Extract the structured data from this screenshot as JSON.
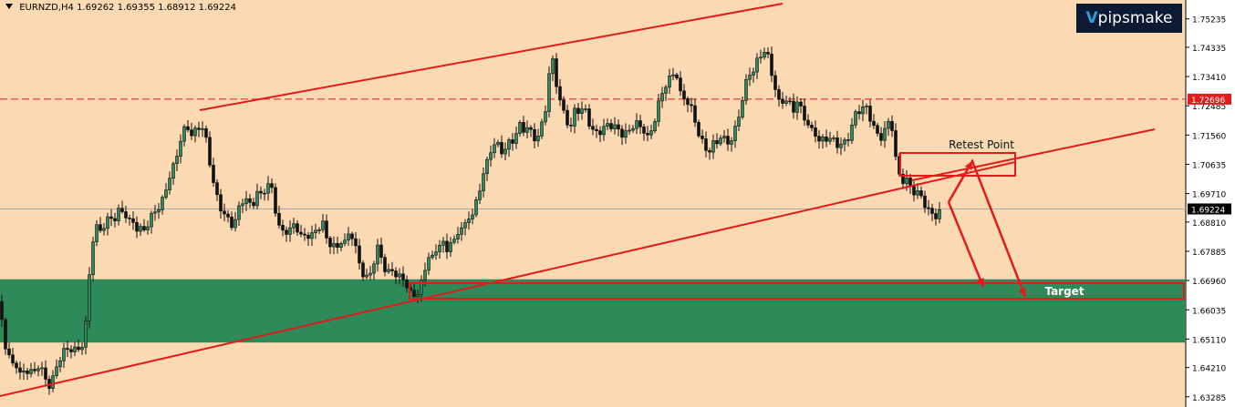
{
  "header": {
    "symbol": "EURNZD,H4",
    "ohlc": "1.69262 1.69355 1.68912 1.69224"
  },
  "logo_text": "pipsmake",
  "colors": {
    "background": "#fbd9b3",
    "axis_bg": "#ffffff",
    "bull": "#2f8a59",
    "bear": "#111111",
    "zone": "#2f8a59",
    "trendline": "#e21b1b",
    "price_line": "#aaaaaa"
  },
  "chart_data": {
    "type": "candlestick",
    "symbol": "EURNZD",
    "timeframe": "H4",
    "ylim": [
      1.6325,
      1.756
    ],
    "y_ticks": [
      "1.75235",
      "1.74335",
      "1.73410",
      "1.72485",
      "1.71560",
      "1.70635",
      "1.69710",
      "1.68810",
      "1.67885",
      "1.66960",
      "1.66035",
      "1.65110",
      "1.64210",
      "1.63285"
    ],
    "current_price": {
      "label": "1.69224",
      "value": 1.69224
    },
    "resistance_level": {
      "label": "1.72696",
      "value": 1.72696,
      "style": "dashed"
    },
    "support_zone": {
      "from": 1.65,
      "to": 1.67
    },
    "annotations": [
      {
        "text": "Retest Point"
      },
      {
        "text": "Target"
      }
    ],
    "close_path": [
      [
        0,
        1.662
      ],
      [
        4,
        1.65
      ],
      [
        8,
        1.645
      ],
      [
        13,
        1.642
      ],
      [
        18,
        1.644
      ],
      [
        23,
        1.641
      ],
      [
        28,
        1.643
      ],
      [
        33,
        1.64
      ],
      [
        38,
        1.639
      ],
      [
        43,
        1.642
      ],
      [
        48,
        1.64
      ],
      [
        53,
        1.638
      ],
      [
        58,
        1.64
      ],
      [
        63,
        1.643
      ],
      [
        68,
        1.645
      ],
      [
        73,
        1.646
      ],
      [
        78,
        1.648
      ],
      [
        83,
        1.649
      ],
      [
        88,
        1.65
      ],
      [
        93,
        1.652
      ],
      [
        97,
        1.667
      ],
      [
        101,
        1.68
      ],
      [
        106,
        1.685
      ],
      [
        111,
        1.686
      ],
      [
        116,
        1.69
      ],
      [
        121,
        1.691
      ],
      [
        126,
        1.689
      ],
      [
        131,
        1.69
      ],
      [
        136,
        1.69
      ],
      [
        141,
        1.688
      ],
      [
        146,
        1.69
      ],
      [
        151,
        1.687
      ],
      [
        156,
        1.686
      ],
      [
        161,
        1.685
      ],
      [
        166,
        1.688
      ],
      [
        171,
        1.692
      ],
      [
        176,
        1.694
      ],
      [
        181,
        1.7
      ],
      [
        186,
        1.703
      ],
      [
        191,
        1.705
      ],
      [
        196,
        1.71
      ],
      [
        201,
        1.716
      ],
      [
        206,
        1.719
      ],
      [
        211,
        1.717
      ],
      [
        216,
        1.719
      ],
      [
        221,
        1.718
      ],
      [
        226,
        1.712
      ],
      [
        231,
        1.704
      ],
      [
        236,
        1.698
      ],
      [
        241,
        1.695
      ],
      [
        246,
        1.692
      ],
      [
        251,
        1.688
      ],
      [
        256,
        1.685
      ],
      [
        261,
        1.69
      ],
      [
        266,
        1.695
      ],
      [
        271,
        1.697
      ],
      [
        276,
        1.694
      ],
      [
        281,
        1.698
      ],
      [
        286,
        1.695
      ],
      [
        291,
        1.697
      ],
      [
        296,
        1.7
      ],
      [
        300,
        1.697
      ],
      [
        304,
        1.69
      ],
      [
        309,
        1.686
      ],
      [
        314,
        1.685
      ],
      [
        319,
        1.684
      ],
      [
        324,
        1.686
      ],
      [
        329,
        1.684
      ],
      [
        334,
        1.685
      ],
      [
        339,
        1.686
      ],
      [
        344,
        1.684
      ],
      [
        349,
        1.685
      ],
      [
        354,
        1.686
      ],
      [
        359,
        1.681
      ],
      [
        364,
        1.683
      ],
      [
        369,
        1.681
      ],
      [
        374,
        1.683
      ],
      [
        379,
        1.68
      ],
      [
        384,
        1.684
      ],
      [
        389,
        1.68
      ],
      [
        394,
        1.676
      ],
      [
        399,
        1.673
      ],
      [
        404,
        1.671
      ],
      [
        409,
        1.674
      ],
      [
        414,
        1.678
      ],
      [
        419,
        1.675
      ],
      [
        424,
        1.672
      ],
      [
        429,
        1.675
      ],
      [
        434,
        1.673
      ],
      [
        439,
        1.67
      ],
      [
        444,
        1.668
      ],
      [
        449,
        1.664
      ],
      [
        454,
        1.665
      ],
      [
        459,
        1.668
      ],
      [
        464,
        1.672
      ],
      [
        469,
        1.678
      ],
      [
        474,
        1.675
      ],
      [
        479,
        1.678
      ],
      [
        484,
        1.682
      ],
      [
        489,
        1.68
      ],
      [
        494,
        1.684
      ],
      [
        499,
        1.682
      ],
      [
        504,
        1.686
      ],
      [
        509,
        1.684
      ],
      [
        514,
        1.689
      ],
      [
        519,
        1.692
      ],
      [
        524,
        1.698
      ],
      [
        529,
        1.704
      ],
      [
        534,
        1.706
      ],
      [
        539,
        1.71
      ],
      [
        544,
        1.712
      ],
      [
        549,
        1.711
      ],
      [
        554,
        1.713
      ],
      [
        559,
        1.715
      ],
      [
        564,
        1.714
      ],
      [
        569,
        1.717
      ],
      [
        574,
        1.716
      ],
      [
        579,
        1.718
      ],
      [
        584,
        1.717
      ],
      [
        589,
        1.716
      ],
      [
        594,
        1.719
      ],
      [
        599,
        1.724
      ],
      [
        603,
        1.736
      ],
      [
        607,
        1.738
      ],
      [
        611,
        1.73
      ],
      [
        616,
        1.726
      ],
      [
        621,
        1.722
      ],
      [
        626,
        1.718
      ],
      [
        631,
        1.723
      ],
      [
        636,
        1.721
      ],
      [
        641,
        1.724
      ],
      [
        646,
        1.721
      ],
      [
        651,
        1.718
      ],
      [
        656,
        1.717
      ],
      [
        661,
        1.716
      ],
      [
        666,
        1.717
      ],
      [
        671,
        1.718
      ],
      [
        676,
        1.719
      ],
      [
        681,
        1.718
      ],
      [
        686,
        1.717
      ],
      [
        691,
        1.716
      ],
      [
        696,
        1.718
      ],
      [
        701,
        1.717
      ],
      [
        706,
        1.718
      ],
      [
        711,
        1.716
      ],
      [
        716,
        1.72
      ],
      [
        721,
        1.724
      ],
      [
        726,
        1.727
      ],
      [
        731,
        1.731
      ],
      [
        736,
        1.734
      ],
      [
        741,
        1.738
      ],
      [
        746,
        1.73
      ],
      [
        751,
        1.727
      ],
      [
        756,
        1.724
      ],
      [
        761,
        1.719
      ],
      [
        766,
        1.716
      ],
      [
        771,
        1.714
      ],
      [
        776,
        1.712
      ],
      [
        781,
        1.713
      ],
      [
        786,
        1.712
      ],
      [
        791,
        1.714
      ],
      [
        796,
        1.712
      ],
      [
        801,
        1.715
      ],
      [
        806,
        1.719
      ],
      [
        811,
        1.724
      ],
      [
        816,
        1.729
      ],
      [
        821,
        1.733
      ],
      [
        826,
        1.735
      ],
      [
        831,
        1.74
      ],
      [
        836,
        1.744
      ],
      [
        840,
        1.744
      ],
      [
        844,
        1.738
      ],
      [
        849,
        1.73
      ],
      [
        854,
        1.724
      ],
      [
        859,
        1.726
      ],
      [
        864,
        1.728
      ],
      [
        869,
        1.725
      ],
      [
        874,
        1.727
      ],
      [
        879,
        1.722
      ],
      [
        884,
        1.718
      ],
      [
        889,
        1.716
      ],
      [
        894,
        1.717
      ],
      [
        899,
        1.715
      ],
      [
        904,
        1.716
      ],
      [
        909,
        1.714
      ],
      [
        914,
        1.712
      ],
      [
        919,
        1.711
      ],
      [
        924,
        1.713
      ],
      [
        929,
        1.716
      ],
      [
        934,
        1.72
      ],
      [
        939,
        1.723
      ],
      [
        944,
        1.722
      ],
      [
        949,
        1.723
      ],
      [
        954,
        1.721
      ],
      [
        959,
        1.719
      ],
      [
        964,
        1.716
      ],
      [
        969,
        1.717
      ],
      [
        974,
        1.718
      ],
      [
        979,
        1.716
      ],
      [
        983,
        1.704
      ],
      [
        988,
        1.702
      ],
      [
        993,
        1.704
      ],
      [
        998,
        1.7
      ],
      [
        1003,
        1.697
      ],
      [
        1008,
        1.695
      ],
      [
        1013,
        1.693
      ],
      [
        1018,
        1.692
      ],
      [
        1023,
        1.692
      ],
      [
        1028,
        1.692
      ],
      [
        1033,
        1.692
      ]
    ]
  }
}
